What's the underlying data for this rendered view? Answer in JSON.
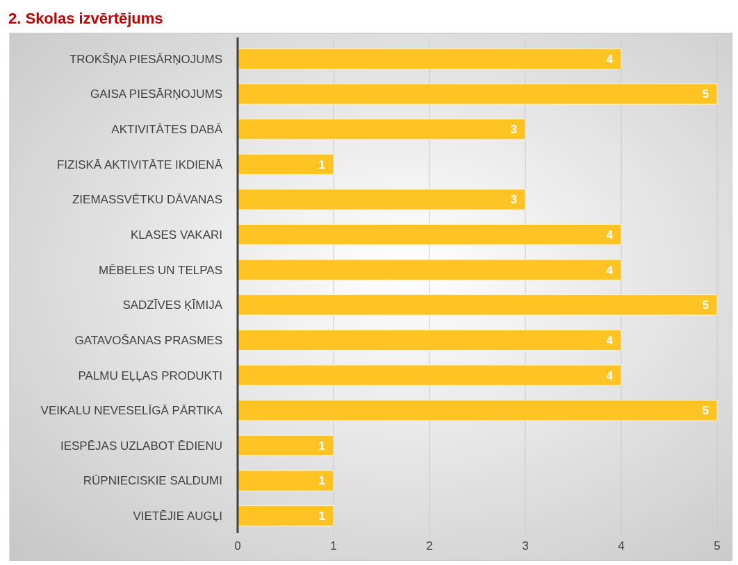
{
  "chart_data": {
    "type": "bar",
    "orientation": "horizontal",
    "title": "2. Skolas izvērtējums",
    "categories": [
      "TROKŠŅA PIESĀRŅOJUMS",
      "GAISA PIESĀRŅOJUMS",
      "AKTIVITĀTES DABĀ",
      "FIZISKĀ AKTIVITĀTE IKDIENĀ",
      "ZIEMASSVĒTKU DĀVANAS",
      "KLASES VAKARI",
      "MĒBELES UN TELPAS",
      "SADZĪVES ĶĪMIJA",
      "GATAVOŠANAS PRASMES",
      "PALMU EĻĻAS PRODUKTI",
      "VEIKALU NEVESELĪGĀ PĀRTIKA",
      "IESPĒJAS UZLABOT ĒDIENU",
      "RŪPNIECISKIE SALDUMI",
      "VIETĒJIE AUGĻI"
    ],
    "values": [
      4,
      5,
      3,
      1,
      3,
      4,
      4,
      5,
      4,
      4,
      5,
      1,
      1,
      1
    ],
    "color": "#ffc423",
    "xlim": [
      0,
      5
    ],
    "xticks": [
      0,
      1,
      2,
      3,
      4,
      5
    ],
    "grid": "x",
    "data_labels": true
  }
}
